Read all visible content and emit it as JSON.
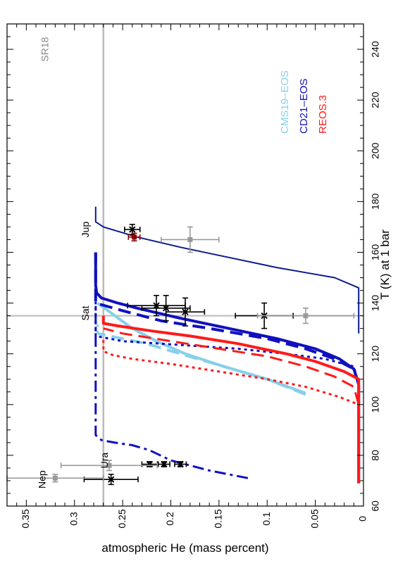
{
  "colors": {
    "cms19": "#87cfeb",
    "cd21": "#1010c0",
    "cd21_navy": "#0a1a8f",
    "reos": "#ff1a1a",
    "ref": "#bbbbbb",
    "obs_black": "#000000",
    "obs_gray": "#999999"
  },
  "chart_data": {
    "type": "line",
    "orientation": "rotated 90 degrees counter-clockwise (x-axis runs along the right edge)",
    "xlabel": "T (K) at 1 bar",
    "ylabel": "atmospheric He (mass percent)",
    "xlim": [
      60,
      250
    ],
    "ylim": [
      0,
      0.37
    ],
    "x_ticks": [
      "60",
      "80",
      "100",
      "120",
      "140",
      "160",
      "180",
      "200",
      "220",
      "240"
    ],
    "y_ticks": [
      "0",
      "0.05",
      "0.1",
      "0.15",
      "0.2",
      "0.25",
      "0.3",
      "0.35"
    ],
    "reference_lines": [
      {
        "axis": "y",
        "value": 0.27,
        "color": "#bbbbbb"
      },
      {
        "axis": "x",
        "value": 135,
        "color": "#bbbbbb"
      }
    ],
    "annotations": [
      {
        "text": "SR18",
        "x": 240,
        "y": 0.33,
        "color": "#888888"
      },
      {
        "text": "Nep",
        "x": 70.5,
        "y": 0.333
      },
      {
        "text": "Ura",
        "x": 78,
        "y": 0.268
      },
      {
        "text": "Sat",
        "x": 136,
        "y": 0.288
      },
      {
        "text": "Jup",
        "x": 169,
        "y": 0.288
      }
    ],
    "legend": [
      {
        "text": "CMS19–EOS",
        "color": "#87cfeb"
      },
      {
        "text": "CD21–EOS",
        "color": "#1010c0"
      },
      {
        "text": "REOS.3",
        "color": "#ff1a1a"
      }
    ],
    "legend_position": "top-right",
    "series": [
      {
        "color": "#87cfeb",
        "dash": "solid",
        "width": 4,
        "x": [
          104.5,
          110,
          115,
          120,
          125,
          130,
          135,
          140
        ],
        "y": [
          0.06,
          0.1,
          0.145,
          0.185,
          0.215,
          0.24,
          0.258,
          0.276
        ]
      },
      {
        "color": "#87cfeb",
        "dash": "longdash",
        "width": 4,
        "x": [
          104,
          110,
          115,
          120,
          124,
          128
        ],
        "y": [
          0.06,
          0.1,
          0.145,
          0.19,
          0.225,
          0.276
        ]
      },
      {
        "color": "#87cfeb",
        "dash": "dot",
        "width": 3,
        "x": [
          128,
          133
        ],
        "y": [
          0.276,
          0.276
        ]
      },
      {
        "color": "#1010c0",
        "dash": "solid",
        "width": 4,
        "x": [
          69,
          108,
          114,
          118,
          122,
          126,
          130,
          134,
          138,
          140,
          142,
          144,
          147,
          160
        ],
        "y": [
          0.005,
          0.005,
          0.01,
          0.025,
          0.05,
          0.09,
          0.14,
          0.19,
          0.235,
          0.255,
          0.272,
          0.277,
          0.278,
          0.278
        ]
      },
      {
        "color": "#1010c0",
        "dash": "longdash",
        "width": 4,
        "x": [
          108,
          114,
          118,
          122,
          126,
          130,
          133,
          137,
          140,
          160
        ],
        "y": [
          0.005,
          0.01,
          0.03,
          0.06,
          0.1,
          0.16,
          0.21,
          0.25,
          0.278,
          0.278
        ]
      },
      {
        "color": "#1010c0",
        "dash": "dot",
        "width": 3,
        "x": [
          108,
          115,
          118,
          120,
          122,
          123.5,
          125,
          127,
          160
        ],
        "y": [
          0.005,
          0.01,
          0.04,
          0.08,
          0.13,
          0.19,
          0.25,
          0.278,
          0.278
        ]
      },
      {
        "color": "#1010c0",
        "dash": "dashdot",
        "width": 3,
        "x": [
          71,
          74,
          78,
          82,
          84,
          85,
          86,
          88,
          140
        ],
        "y": [
          0.12,
          0.16,
          0.2,
          0.222,
          0.24,
          0.258,
          0.272,
          0.278,
          0.278
        ]
      },
      {
        "color": "#0a1a8f",
        "dash": "solid",
        "width": 2,
        "x": [
          128,
          146,
          150,
          152,
          154,
          158,
          162,
          166,
          170,
          172,
          178
        ],
        "y": [
          0.005,
          0.005,
          0.03,
          0.06,
          0.09,
          0.14,
          0.19,
          0.235,
          0.27,
          0.278,
          0.278
        ]
      },
      {
        "color": "#ff1a1a",
        "dash": "solid",
        "width": 4,
        "x": [
          69,
          110,
          113,
          117,
          120,
          124,
          127,
          129,
          131,
          132,
          135
        ],
        "y": [
          0.005,
          0.005,
          0.02,
          0.05,
          0.08,
          0.13,
          0.18,
          0.22,
          0.255,
          0.27,
          0.27
        ]
      },
      {
        "color": "#ff1a1a",
        "dash": "longdash",
        "width": 3,
        "x": [
          100,
          107,
          111,
          115,
          119,
          122,
          125,
          128,
          130
        ],
        "y": [
          0.005,
          0.01,
          0.03,
          0.06,
          0.1,
          0.15,
          0.2,
          0.25,
          0.27
        ]
      },
      {
        "color": "#ff1a1a",
        "dash": "dot",
        "width": 3,
        "x": [
          69,
          100,
          103,
          107,
          110,
          113,
          116,
          118,
          119.5,
          121,
          126
        ],
        "y": [
          0.005,
          0.005,
          0.025,
          0.06,
          0.1,
          0.15,
          0.2,
          0.24,
          0.26,
          0.27,
          0.27
        ]
      }
    ],
    "observations": [
      {
        "color": "#000000",
        "marker": "x",
        "x": 169,
        "y": 0.24,
        "xerr": 2,
        "yerr": 0.008
      },
      {
        "color": "#000000",
        "marker": "x",
        "x": 139,
        "y": 0.215,
        "xerr": 4,
        "yerr": 0.03
      },
      {
        "color": "#000000",
        "marker": "x",
        "x": 138,
        "y": 0.205,
        "xerr": 5,
        "yerr": 0.025
      },
      {
        "color": "#000000",
        "marker": "x",
        "x": 136.5,
        "y": 0.185,
        "xerr": 5.5,
        "yerr": 0.02
      },
      {
        "color": "#000000",
        "marker": "x",
        "x": 135,
        "y": 0.103,
        "xerr": 5,
        "yerr": 0.03
      },
      {
        "color": "#000000",
        "marker": "x",
        "x": 76.5,
        "y": 0.222,
        "xerr": 1,
        "yerr": 0.008
      },
      {
        "color": "#000000",
        "marker": "x",
        "x": 76.5,
        "y": 0.207,
        "xerr": 1,
        "yerr": 0.006
      },
      {
        "color": "#000000",
        "marker": "x",
        "x": 76.5,
        "y": 0.19,
        "xerr": 1,
        "yerr": 0.006
      },
      {
        "color": "#000000",
        "marker": "x",
        "x": 70.5,
        "y": 0.262,
        "xerr": 2,
        "yerr": 0.028
      },
      {
        "color": "#8b0000",
        "marker": "square",
        "x": 166,
        "y": 0.238,
        "xerr": 1.5,
        "yerr": 0.006
      },
      {
        "color": "#999999",
        "marker": "square",
        "x": 165,
        "y": 0.18,
        "xerr": 5,
        "yerr": 0.03
      },
      {
        "color": "#999999",
        "marker": "square",
        "x": 135,
        "y": 0.06,
        "xerr": 3,
        "yerr": 0.05
      },
      {
        "color": "#999999",
        "marker": "square",
        "x": 76,
        "y": 0.264,
        "xerr": 2,
        "yerr": 0.05
      },
      {
        "color": "#999999",
        "marker": "square",
        "x": 71,
        "y": 0.32,
        "xerr": 1.5,
        "yerr": 0.05
      }
    ]
  }
}
